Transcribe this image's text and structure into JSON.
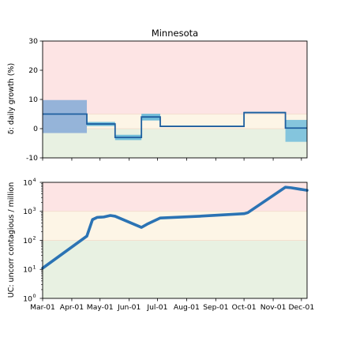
{
  "chart_data": [
    {
      "type": "line",
      "title": "Minnesota",
      "ylabel": "δ: daily growth (%)",
      "xlabel": "",
      "ylim": [
        -10,
        30
      ],
      "y_ticks": [
        -10,
        0,
        10,
        20,
        30
      ],
      "x_range": [
        "2020-03-01",
        "2020-12-07"
      ],
      "grid": false,
      "background_bands": [
        {
          "from": 5,
          "to": 30,
          "color": "#fde4e4"
        },
        {
          "from": 0,
          "to": 5,
          "color": "#fdf5e6"
        },
        {
          "from": -10,
          "to": 0,
          "color": "#e8f1e2"
        }
      ],
      "series": [
        {
          "type": "step",
          "color": "#1f5f9f",
          "values": [
            {
              "from": "2020-03-01",
              "to": "2020-04-17",
              "y": 5.0
            },
            {
              "from": "2020-04-17",
              "to": "2020-05-17",
              "y": 1.6
            },
            {
              "from": "2020-05-17",
              "to": "2020-06-14",
              "y": -3.0
            },
            {
              "from": "2020-06-14",
              "to": "2020-07-04",
              "y": 4.0
            },
            {
              "from": "2020-07-04",
              "to": "2020-10-01",
              "y": 0.8
            },
            {
              "from": "2020-10-01",
              "to": "2020-11-14",
              "y": 5.5
            },
            {
              "from": "2020-11-14",
              "to": "2020-12-07",
              "y": 0.2
            }
          ]
        }
      ],
      "uncertainty_boxes": [
        {
          "from": "2020-03-01",
          "to": "2020-04-17",
          "low": -1.5,
          "high": 9.8,
          "color": "#8fb0d8"
        },
        {
          "from": "2020-04-17",
          "to": "2020-05-17",
          "low": 0.9,
          "high": 2.3,
          "color": "#6bbad8"
        },
        {
          "from": "2020-05-17",
          "to": "2020-06-14",
          "low": -3.9,
          "high": -2.1,
          "color": "#6bbad8"
        },
        {
          "from": "2020-06-14",
          "to": "2020-07-04",
          "low": 2.8,
          "high": 5.1,
          "color": "#6bbad8"
        },
        {
          "from": "2020-07-04",
          "to": "2020-10-01",
          "low": 0.6,
          "high": 1.0,
          "color": "#6bbad8"
        },
        {
          "from": "2020-10-01",
          "to": "2020-11-14",
          "low": 5.2,
          "high": 5.8,
          "color": "#6bbad8"
        },
        {
          "from": "2020-11-14",
          "to": "2020-12-07",
          "low": -4.5,
          "high": 3.0,
          "color": "#7ec2dc"
        }
      ]
    },
    {
      "type": "line",
      "title": "",
      "ylabel": "UC: uncorr contagious / million",
      "xlabel": "",
      "y_scale": "log",
      "ylim": [
        1,
        10000
      ],
      "y_ticks": [
        1,
        10,
        100,
        1000,
        10000
      ],
      "y_tick_labels": [
        {
          "base": "10",
          "exp": "0"
        },
        {
          "base": "10",
          "exp": "1"
        },
        {
          "base": "10",
          "exp": "2"
        },
        {
          "base": "10",
          "exp": "3"
        },
        {
          "base": "10",
          "exp": "4"
        }
      ],
      "x_range": [
        "2020-03-01",
        "2020-12-07"
      ],
      "x_ticks": [
        "2020-03-01",
        "2020-04-01",
        "2020-05-01",
        "2020-06-01",
        "2020-07-01",
        "2020-08-01",
        "2020-09-01",
        "2020-10-01",
        "2020-11-01",
        "2020-12-01"
      ],
      "x_tick_labels": [
        "Mar-01",
        "Apr-01",
        "May-01",
        "Jun-01",
        "Jul-01",
        "Aug-01",
        "Sep-01",
        "Oct-01",
        "Nov-01",
        "Dec-01"
      ],
      "grid": false,
      "background_bands": [
        {
          "from": 1000,
          "to": 10000,
          "color": "#fde4e4"
        },
        {
          "from": 100,
          "to": 1000,
          "color": "#fdf5e6"
        },
        {
          "from": 1,
          "to": 100,
          "color": "#e8f1e2"
        }
      ],
      "series": [
        {
          "color": "#2b73b4",
          "points": [
            {
              "x": "2020-03-01",
              "y": 11
            },
            {
              "x": "2020-04-17",
              "y": 140
            },
            {
              "x": "2020-04-23",
              "y": 520
            },
            {
              "x": "2020-04-28",
              "y": 620
            },
            {
              "x": "2020-05-05",
              "y": 640
            },
            {
              "x": "2020-05-12",
              "y": 720
            },
            {
              "x": "2020-05-17",
              "y": 680
            },
            {
              "x": "2020-06-14",
              "y": 280
            },
            {
              "x": "2020-06-20",
              "y": 360
            },
            {
              "x": "2020-07-04",
              "y": 590
            },
            {
              "x": "2020-08-15",
              "y": 680
            },
            {
              "x": "2020-10-01",
              "y": 830
            },
            {
              "x": "2020-10-05",
              "y": 900
            },
            {
              "x": "2020-11-14",
              "y": 6800
            },
            {
              "x": "2020-11-20",
              "y": 6500
            },
            {
              "x": "2020-12-07",
              "y": 5300
            }
          ]
        }
      ]
    }
  ]
}
